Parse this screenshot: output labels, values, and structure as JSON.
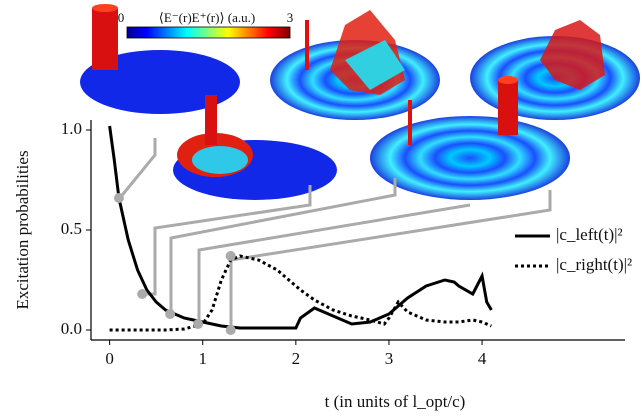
{
  "chart_data": {
    "type": "line",
    "x": [
      0,
      0.05,
      0.1,
      0.2,
      0.3,
      0.4,
      0.5,
      0.6,
      0.8,
      1.0,
      1.1,
      1.2,
      1.3,
      1.4,
      1.6,
      1.8,
      2.0,
      2.05,
      2.2,
      2.4,
      2.6,
      2.8,
      2.95,
      3.0,
      3.1,
      3.2,
      3.4,
      3.6,
      3.7,
      3.75,
      3.9,
      4.0,
      4.05,
      4.1
    ],
    "series": [
      {
        "name": "|c_left(t)|²",
        "color": "#000000",
        "dash": "solid",
        "values": [
          1.02,
          0.85,
          0.66,
          0.45,
          0.3,
          0.2,
          0.14,
          0.1,
          0.06,
          0.04,
          0.03,
          0.02,
          0.015,
          0.01,
          0.01,
          0.01,
          0.01,
          0.06,
          0.11,
          0.07,
          0.03,
          0.04,
          0.07,
          0.08,
          0.12,
          0.16,
          0.22,
          0.25,
          0.24,
          0.22,
          0.18,
          0.27,
          0.14,
          0.1
        ]
      },
      {
        "name": "|c_right(t)|²",
        "color": "#000000",
        "dash": "dotted",
        "values": [
          0,
          0,
          0,
          0,
          0,
          0,
          0,
          0,
          0.005,
          0.03,
          0.1,
          0.25,
          0.35,
          0.37,
          0.35,
          0.3,
          0.22,
          0.2,
          0.15,
          0.1,
          0.07,
          0.05,
          0.03,
          0.06,
          0.14,
          0.09,
          0.05,
          0.04,
          0.04,
          0.04,
          0.05,
          0.04,
          0.03,
          0.02
        ]
      }
    ],
    "snapshots": {
      "color": "#aaaaaa",
      "x": [
        0.1,
        0.35,
        0.65,
        0.95,
        1.3,
        1.3
      ],
      "y": [
        0.66,
        0.18,
        0.08,
        0.03,
        0.37,
        0
      ]
    },
    "xlabel": "t (in units of l_opt/c)",
    "ylabel": "Excitation probabilities",
    "xlim": [
      -0.2,
      4.3
    ],
    "ylim": [
      -0.05,
      1.05
    ],
    "xticks": [
      0,
      1,
      2,
      3,
      4
    ],
    "yticks": [
      {
        "value": 0,
        "label": "0.0"
      },
      {
        "value": 0.5,
        "label": "0.5"
      },
      {
        "value": 1,
        "label": "1.0"
      }
    ],
    "legend": "right",
    "colorbar": {
      "label": "⟨E⁻(r)E⁺(r)⟩ (a.u.)",
      "ticks": [
        0,
        3
      ]
    }
  }
}
